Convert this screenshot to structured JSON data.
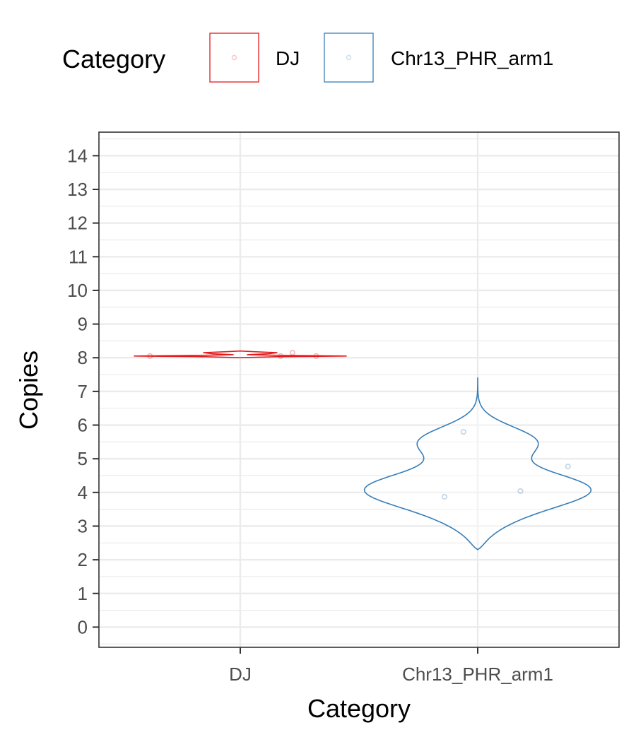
{
  "chart_data": {
    "type": "violin",
    "xlabel": "Category",
    "ylabel": "Copies",
    "categories": [
      "DJ",
      "Chr13_PHR_arm1"
    ],
    "ylim": [
      -0.6,
      14.7
    ],
    "yticks": [
      0,
      1,
      2,
      3,
      4,
      5,
      6,
      7,
      8,
      9,
      10,
      11,
      12,
      13,
      14
    ],
    "ytick_labels": [
      "0",
      "1",
      "2",
      "3",
      "4",
      "5",
      "6",
      "7",
      "8",
      "9",
      "10",
      "11",
      "12",
      "13",
      "14"
    ],
    "grid": true,
    "legend": {
      "title": "Category",
      "position": "top",
      "entries": [
        "DJ",
        "Chr13_PHR_arm1"
      ]
    },
    "series": [
      {
        "name": "DJ",
        "color": "#e41a1c",
        "points": [
          {
            "x": -0.38,
            "y": 8.05
          },
          {
            "x": 0.17,
            "y": 8.05
          },
          {
            "x": 0.22,
            "y": 8.15
          },
          {
            "x": 0.32,
            "y": 8.05
          }
        ],
        "violin_range": [
          8.0,
          8.2
        ]
      },
      {
        "name": "Chr13_PHR_arm1",
        "color": "#377eb8",
        "points": [
          {
            "x": -0.14,
            "y": 3.87
          },
          {
            "x": -0.06,
            "y": 5.8
          },
          {
            "x": 0.18,
            "y": 4.04
          },
          {
            "x": 0.38,
            "y": 4.77
          }
        ],
        "violin_range": [
          2.3,
          7.4
        ]
      }
    ]
  }
}
